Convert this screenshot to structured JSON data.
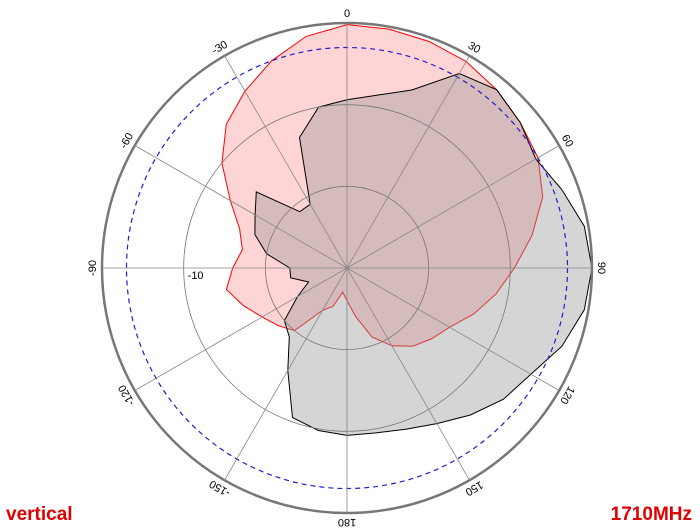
{
  "chart_data": {
    "type": "polar",
    "theta": [
      0,
      10,
      20,
      30,
      40,
      50,
      60,
      70,
      80,
      90,
      100,
      110,
      120,
      130,
      140,
      150,
      160,
      170,
      180,
      190,
      200,
      210,
      220,
      230,
      240,
      250,
      260,
      270,
      280,
      290,
      300,
      310,
      320,
      330,
      340,
      350
    ],
    "series": [
      {
        "color": "#ff0000",
        "fill": "rgba(255,0,0,0.17)",
        "values": [
          -0.2,
          -0.3,
          -0.5,
          -0.8,
          -1.5,
          -2.3,
          -3,
          -4.5,
          -7,
          -9.5,
          -11.5,
          -13.5,
          -15.5,
          -16.5,
          -17.5,
          -19,
          -21,
          -24,
          -26,
          -27,
          -25,
          -24,
          -20,
          -19,
          -18,
          -16.5,
          -15,
          -16,
          -17,
          -16,
          -13.5,
          -10,
          -7,
          -5,
          -3,
          -1.2
        ]
      },
      {
        "color": "#000000",
        "fill": "rgba(150,150,150,0.4)",
        "values": [
          -9.4,
          -8.5,
          -6.8,
          -2.5,
          -1.5,
          -2.3,
          -3.3,
          -2,
          -0.5,
          0,
          -0.5,
          -2,
          -4,
          -5,
          -6.5,
          -8,
          -9,
          -9.5,
          -9.5,
          -9.8,
          -10.5,
          -15.5,
          -19,
          -20,
          -23,
          -25,
          -23,
          -23,
          -20,
          -18,
          -17,
          -15.5,
          -21,
          -21,
          -13,
          -10
        ]
      }
    ],
    "rlim": [
      -30,
      0
    ],
    "rgrid": [
      -20,
      -10
    ],
    "rticks": [
      -10
    ],
    "reference_ring": -3,
    "thetaticks": [
      0,
      30,
      60,
      90,
      120,
      150,
      180,
      -150,
      -120,
      -90,
      -60,
      -30
    ],
    "polarization": "vertical",
    "frequency": "1710MHz"
  }
}
